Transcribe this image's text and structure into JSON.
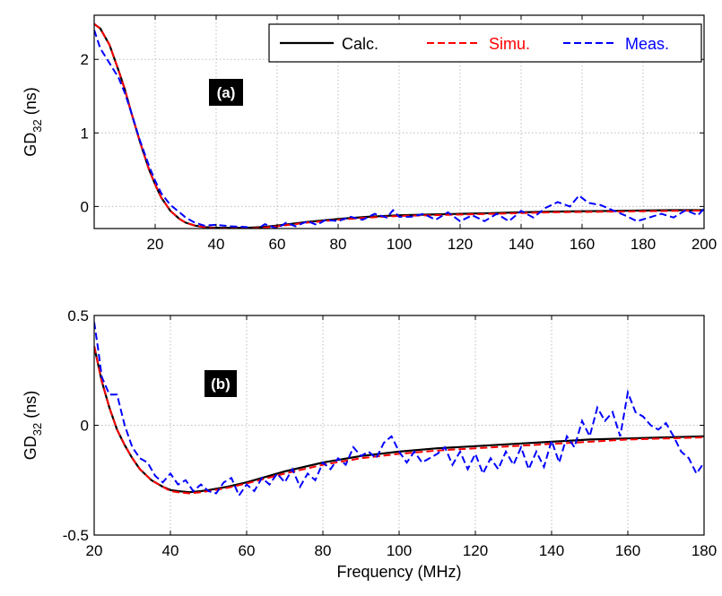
{
  "chart_data": [
    {
      "type": "line",
      "panel_label": "(a)",
      "xlabel": "",
      "ylabel_main": "GD",
      "ylabel_sub": "32",
      "ylabel_unit": " (ns)",
      "xlim": [
        0,
        200
      ],
      "ylim": [
        -0.3,
        2.6
      ],
      "xticks": [
        20,
        40,
        60,
        80,
        100,
        120,
        140,
        160,
        180,
        200
      ],
      "xtick_labels": [
        "20",
        "40",
        "60",
        "80",
        "100",
        "120",
        "140",
        "160",
        "180",
        "200"
      ],
      "yticks": [
        0,
        1,
        2
      ],
      "ytick_labels": [
        "0",
        "1",
        "2"
      ],
      "grid": true,
      "legend_position": "top-right",
      "series": [
        {
          "name": "Calc.",
          "color": "#000000",
          "dash": "solid",
          "x": [
            0,
            2,
            5,
            8,
            10,
            12,
            15,
            18,
            20,
            22,
            25,
            28,
            30,
            33,
            36,
            40,
            45,
            50,
            55,
            60,
            70,
            80,
            90,
            100,
            110,
            120,
            130,
            140,
            150,
            160,
            170,
            180,
            190,
            200
          ],
          "y": [
            2.48,
            2.42,
            2.2,
            1.85,
            1.6,
            1.3,
            0.88,
            0.5,
            0.3,
            0.12,
            -0.06,
            -0.17,
            -0.22,
            -0.26,
            -0.28,
            -0.29,
            -0.29,
            -0.29,
            -0.28,
            -0.26,
            -0.21,
            -0.17,
            -0.14,
            -0.12,
            -0.11,
            -0.1,
            -0.09,
            -0.08,
            -0.07,
            -0.065,
            -0.06,
            -0.055,
            -0.05,
            -0.05
          ]
        },
        {
          "name": "Simu.",
          "color": "#ff0000",
          "dash": "dashed",
          "x": [
            0,
            2,
            5,
            8,
            10,
            12,
            15,
            18,
            20,
            22,
            25,
            28,
            30,
            33,
            36,
            40,
            45,
            50,
            55,
            60,
            70,
            80,
            90,
            100,
            110,
            120,
            130,
            140,
            150,
            160,
            170,
            180,
            190,
            200
          ],
          "y": [
            2.48,
            2.42,
            2.2,
            1.85,
            1.6,
            1.3,
            0.88,
            0.5,
            0.3,
            0.12,
            -0.06,
            -0.17,
            -0.22,
            -0.26,
            -0.28,
            -0.3,
            -0.3,
            -0.3,
            -0.29,
            -0.27,
            -0.22,
            -0.18,
            -0.15,
            -0.13,
            -0.12,
            -0.11,
            -0.1,
            -0.09,
            -0.08,
            -0.075,
            -0.07,
            -0.065,
            -0.06,
            -0.055
          ]
        },
        {
          "name": "Meas.",
          "color": "#0000ff",
          "dash": "dashed",
          "x": [
            0,
            2,
            5,
            8,
            10,
            12,
            15,
            18,
            20,
            22,
            25,
            28,
            30,
            33,
            36,
            40,
            45,
            50,
            53,
            56,
            60,
            63,
            66,
            70,
            73,
            76,
            80,
            84,
            88,
            92,
            96,
            98,
            100,
            104,
            108,
            112,
            116,
            120,
            124,
            128,
            132,
            136,
            140,
            144,
            148,
            152,
            156,
            159,
            162,
            166,
            170,
            174,
            178,
            182,
            186,
            190,
            194,
            198,
            200
          ],
          "y": [
            2.4,
            2.15,
            1.95,
            1.75,
            1.55,
            1.3,
            0.9,
            0.55,
            0.35,
            0.18,
            0.02,
            -0.08,
            -0.15,
            -0.22,
            -0.26,
            -0.25,
            -0.27,
            -0.28,
            -0.32,
            -0.24,
            -0.3,
            -0.22,
            -0.27,
            -0.2,
            -0.25,
            -0.18,
            -0.2,
            -0.14,
            -0.18,
            -0.1,
            -0.15,
            -0.05,
            -0.14,
            -0.14,
            -0.1,
            -0.18,
            -0.08,
            -0.2,
            -0.12,
            -0.2,
            -0.1,
            -0.2,
            -0.06,
            -0.15,
            -0.02,
            0.06,
            0.0,
            0.15,
            0.05,
            0.02,
            -0.05,
            -0.12,
            -0.2,
            -0.15,
            -0.1,
            -0.15,
            -0.05,
            -0.12,
            -0.03
          ]
        }
      ]
    },
    {
      "type": "line",
      "panel_label": "(b)",
      "xlabel": "Frequency (MHz)",
      "ylabel_main": "GD",
      "ylabel_sub": "32",
      "ylabel_unit": " (ns)",
      "xlim": [
        20,
        180
      ],
      "ylim": [
        -0.5,
        0.5
      ],
      "xticks": [
        20,
        40,
        60,
        80,
        100,
        120,
        140,
        160,
        180
      ],
      "xtick_labels": [
        "20",
        "40",
        "60",
        "80",
        "100",
        "120",
        "140",
        "160",
        "180"
      ],
      "yticks": [
        -0.5,
        0,
        0.5
      ],
      "ytick_labels": [
        "-0.5",
        "0",
        "0.5"
      ],
      "grid": true,
      "series": [
        {
          "name": "Calc.",
          "color": "#000000",
          "dash": "solid",
          "x": [
            20,
            22,
            24,
            26,
            28,
            30,
            32,
            35,
            38,
            40,
            42,
            45,
            48,
            50,
            55,
            60,
            70,
            80,
            90,
            100,
            110,
            120,
            130,
            140,
            150,
            160,
            170,
            180
          ],
          "y": [
            0.36,
            0.2,
            0.08,
            -0.02,
            -0.09,
            -0.15,
            -0.2,
            -0.25,
            -0.28,
            -0.295,
            -0.3,
            -0.305,
            -0.3,
            -0.295,
            -0.28,
            -0.26,
            -0.21,
            -0.17,
            -0.14,
            -0.12,
            -0.105,
            -0.095,
            -0.085,
            -0.075,
            -0.065,
            -0.06,
            -0.055,
            -0.05
          ]
        },
        {
          "name": "Simu.",
          "color": "#ff0000",
          "dash": "dashed",
          "x": [
            20,
            22,
            24,
            26,
            28,
            30,
            32,
            35,
            38,
            40,
            42,
            45,
            48,
            50,
            55,
            60,
            70,
            80,
            90,
            100,
            110,
            120,
            130,
            140,
            150,
            160,
            170,
            180
          ],
          "y": [
            0.36,
            0.2,
            0.08,
            -0.02,
            -0.09,
            -0.15,
            -0.2,
            -0.25,
            -0.28,
            -0.3,
            -0.305,
            -0.31,
            -0.305,
            -0.3,
            -0.285,
            -0.265,
            -0.22,
            -0.18,
            -0.15,
            -0.13,
            -0.115,
            -0.105,
            -0.095,
            -0.085,
            -0.075,
            -0.065,
            -0.06,
            -0.055
          ]
        },
        {
          "name": "Meas.",
          "color": "#0000ff",
          "dash": "dashed",
          "x": [
            20,
            21,
            22,
            24,
            26,
            28,
            30,
            32,
            34,
            36,
            38,
            40,
            42,
            44,
            46,
            48,
            50,
            52,
            54,
            56,
            58,
            60,
            62,
            64,
            66,
            68,
            70,
            72,
            74,
            76,
            78,
            80,
            82,
            84,
            86,
            88,
            90,
            92,
            94,
            96,
            98,
            100,
            102,
            104,
            106,
            108,
            110,
            112,
            114,
            116,
            118,
            120,
            122,
            124,
            126,
            128,
            130,
            132,
            134,
            136,
            138,
            140,
            142,
            144,
            146,
            148,
            150,
            152,
            154,
            156,
            158,
            160,
            162,
            164,
            166,
            168,
            170,
            172,
            174,
            176,
            178,
            180
          ],
          "y": [
            0.47,
            0.35,
            0.22,
            0.14,
            0.14,
            0.0,
            -0.1,
            -0.15,
            -0.17,
            -0.23,
            -0.26,
            -0.22,
            -0.27,
            -0.25,
            -0.3,
            -0.27,
            -0.3,
            -0.31,
            -0.26,
            -0.24,
            -0.32,
            -0.27,
            -0.3,
            -0.24,
            -0.27,
            -0.22,
            -0.26,
            -0.2,
            -0.28,
            -0.22,
            -0.25,
            -0.17,
            -0.2,
            -0.15,
            -0.18,
            -0.1,
            -0.14,
            -0.12,
            -0.15,
            -0.08,
            -0.05,
            -0.12,
            -0.17,
            -0.12,
            -0.17,
            -0.15,
            -0.13,
            -0.1,
            -0.18,
            -0.12,
            -0.2,
            -0.13,
            -0.22,
            -0.15,
            -0.2,
            -0.12,
            -0.18,
            -0.1,
            -0.2,
            -0.12,
            -0.19,
            -0.07,
            -0.17,
            -0.05,
            -0.1,
            0.02,
            -0.05,
            0.08,
            0.02,
            0.06,
            -0.05,
            0.15,
            0.06,
            0.04,
            0.0,
            -0.02,
            0.01,
            -0.05,
            -0.12,
            -0.15,
            -0.22,
            -0.17
          ]
        }
      ]
    }
  ]
}
